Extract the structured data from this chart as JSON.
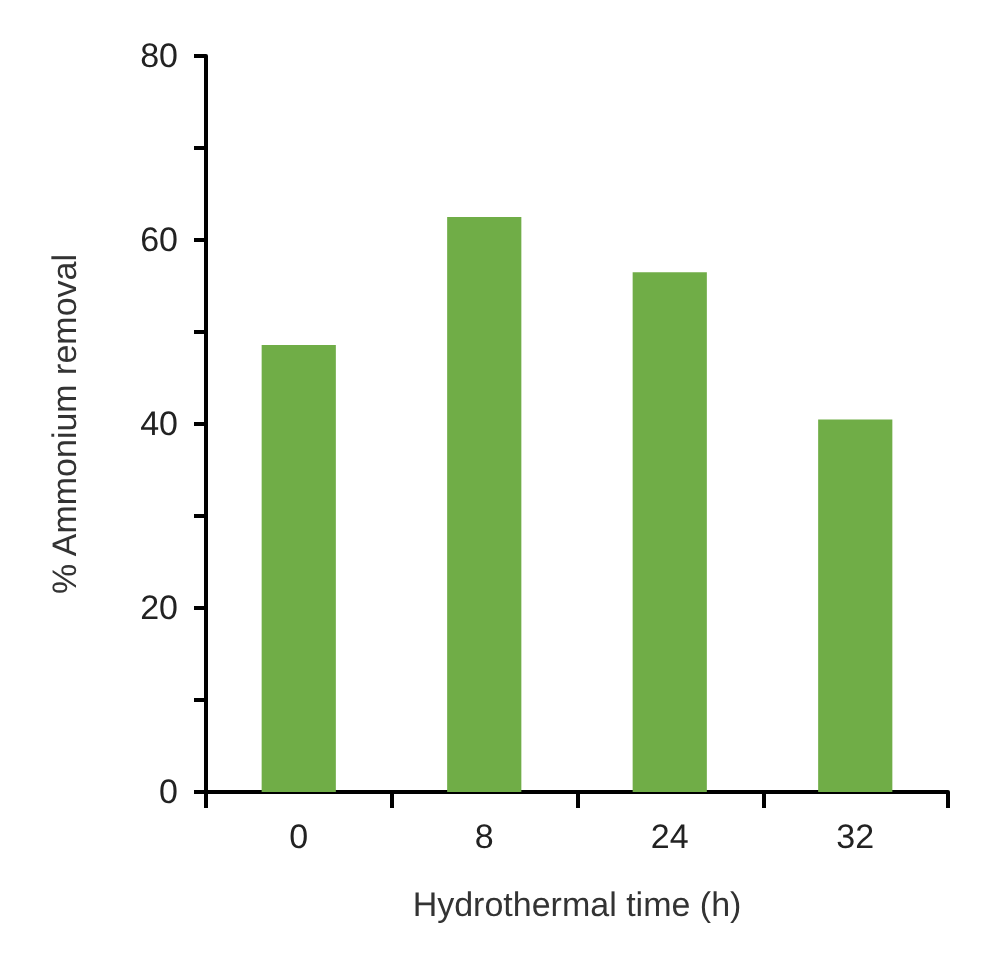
{
  "chart_data": {
    "type": "bar",
    "xlabel": "Hydrothermal time (h)",
    "ylabel": "% Ammonium removal",
    "categories": [
      "0",
      "8",
      "24",
      "32"
    ],
    "values": [
      48.6,
      62.5,
      56.5,
      40.5
    ],
    "color": "#70ad47",
    "ylim": [
      0,
      80
    ],
    "yticks": [
      0,
      {
        "value": 10,
        "label": null
      },
      20,
      {
        "value": 30,
        "label": null
      },
      40,
      {
        "value": 50,
        "label": null
      },
      60,
      {
        "value": 70,
        "label": null
      },
      80
    ],
    "grid": false
  }
}
